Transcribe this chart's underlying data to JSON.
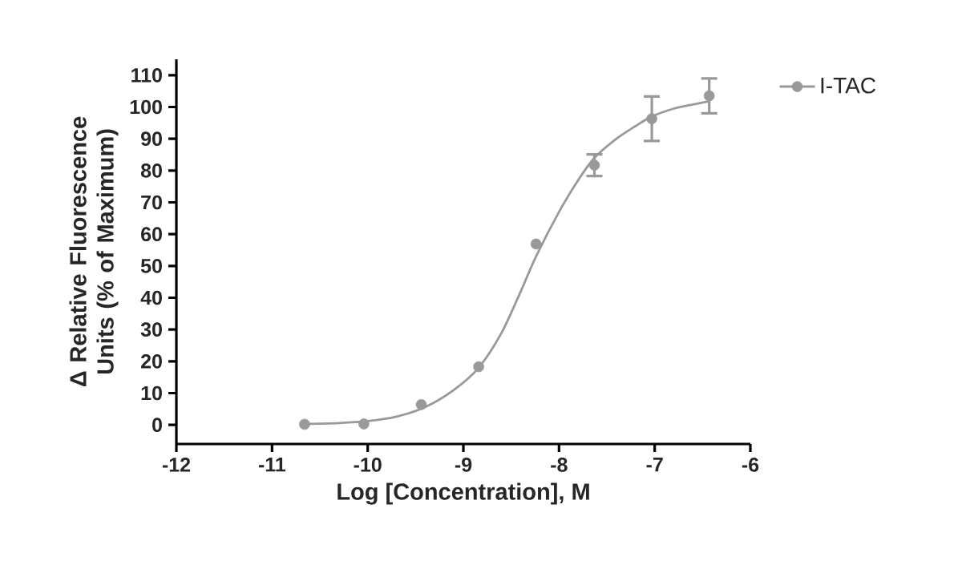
{
  "chart_data": {
    "type": "scatter",
    "xlabel": "Log [Concentration], M",
    "ylabel": "Δ Relative Fluorescence Units (% of Maximum)",
    "xlim": [
      -12,
      -6
    ],
    "xticks": [
      -12,
      -11,
      -10,
      -9,
      -8,
      -7,
      -6
    ],
    "ylim": [
      -6,
      115
    ],
    "yticks": [
      0,
      10,
      20,
      30,
      40,
      50,
      60,
      70,
      80,
      90,
      100,
      110
    ],
    "legend": "right",
    "series": [
      {
        "name": "I-TAC",
        "marker": "circle",
        "color": "#999999",
        "x": [
          -10.66,
          -10.04,
          -9.44,
          -8.84,
          -8.24,
          -7.63,
          -7.03,
          -6.43
        ],
        "values": [
          0.2,
          0.3,
          6.4,
          18.3,
          56.9,
          81.7,
          96.3,
          103.5
        ],
        "errors": [
          null,
          null,
          null,
          null,
          null,
          3.4,
          7,
          5.5
        ]
      },
      {
        "type": "line",
        "marker": "none",
        "color": "#999999",
        "x": [
          -10.66,
          -10.3,
          -10.0,
          -9.7,
          -9.4,
          -9.1,
          -8.84,
          -8.6,
          -8.4,
          -8.24,
          -8.0,
          -7.8,
          -7.63,
          -7.4,
          -7.2,
          -7.03,
          -6.8,
          -6.6,
          -6.43
        ],
        "values": [
          0.3,
          0.6,
          1.2,
          2.6,
          5.6,
          11,
          18,
          29,
          42,
          53,
          67,
          77,
          84,
          90,
          94,
          97,
          99.5,
          100.8,
          101.8
        ]
      }
    ]
  }
}
